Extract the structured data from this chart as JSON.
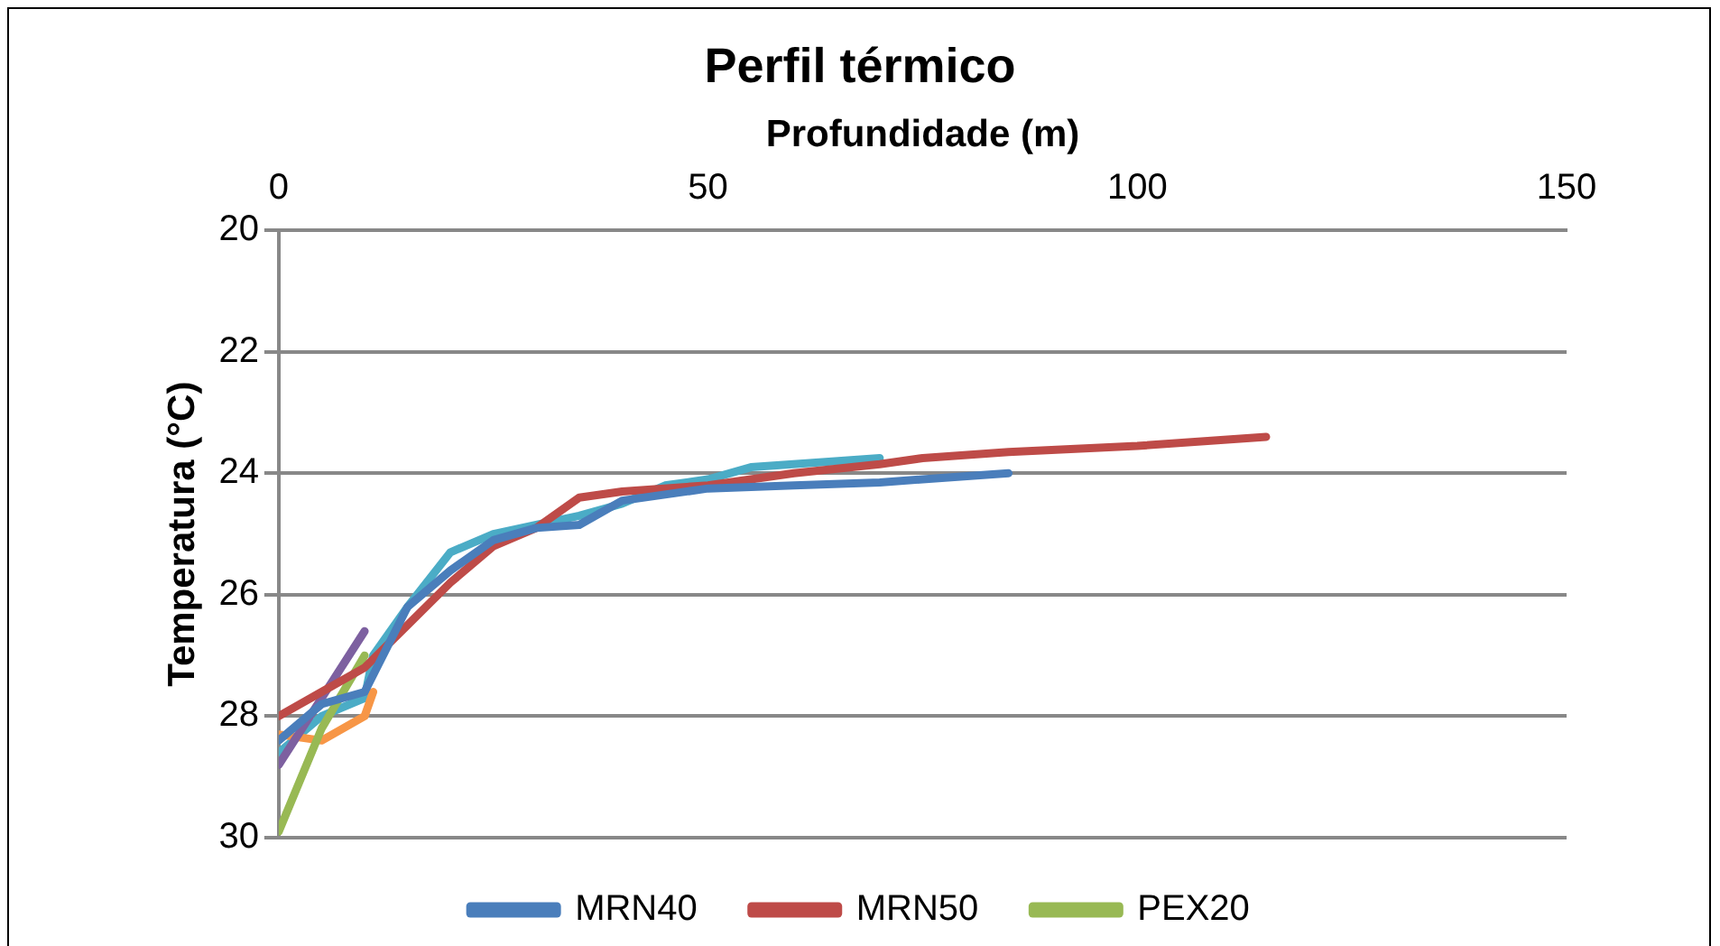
{
  "chart_data": {
    "type": "line",
    "title": "Perfil térmico",
    "xlabel": "Profundidade (m)",
    "ylabel": "Temperatura (°C)",
    "xlim": [
      0,
      150
    ],
    "xticks": [
      0,
      50,
      100,
      150
    ],
    "ylim": [
      30,
      20
    ],
    "yticks": [
      20,
      22,
      24,
      26,
      28,
      30
    ],
    "grid": "y",
    "legend": "bottom",
    "marker": "none",
    "line_style": "solid",
    "series": [
      {
        "name": "MRN40",
        "color": "#4a7ebb",
        "x": [
          0,
          5,
          10,
          15,
          20,
          25,
          30,
          35,
          40,
          50,
          60,
          70,
          75,
          85
        ],
        "values": [
          28.4,
          27.8,
          27.6,
          26.2,
          25.6,
          25.1,
          24.9,
          24.85,
          24.45,
          24.25,
          24.2,
          24.15,
          24.1,
          24.0
        ]
      },
      {
        "name": "MRN50",
        "color": "#be4b48",
        "x": [
          0,
          5,
          10,
          15,
          20,
          25,
          30,
          35,
          40,
          50,
          60,
          70,
          75,
          85,
          100,
          115
        ],
        "values": [
          28.0,
          27.6,
          27.2,
          26.5,
          25.8,
          25.2,
          24.9,
          24.4,
          24.3,
          24.2,
          24.0,
          23.85,
          23.75,
          23.65,
          23.55,
          23.4
        ]
      },
      {
        "name": "PEX20",
        "color": "#98b954",
        "x": [
          0,
          5,
          10
        ],
        "values": [
          29.9,
          28.2,
          27.0
        ]
      },
      {
        "color": "#7d60a0",
        "x": [
          0,
          5,
          10
        ],
        "values": [
          28.8,
          27.7,
          26.6
        ]
      },
      {
        "color": "#f79646",
        "x": [
          0,
          5,
          10,
          11
        ],
        "values": [
          28.3,
          28.4,
          28.0,
          27.6
        ]
      },
      {
        "color": "#4bacc6",
        "x": [
          0,
          5,
          10,
          11,
          15,
          20,
          25,
          30,
          35,
          40,
          45,
          50,
          55,
          70
        ],
        "values": [
          28.6,
          28.0,
          27.7,
          27.0,
          26.2,
          25.3,
          25.0,
          24.85,
          24.7,
          24.5,
          24.2,
          24.1,
          23.9,
          23.75
        ]
      }
    ]
  }
}
